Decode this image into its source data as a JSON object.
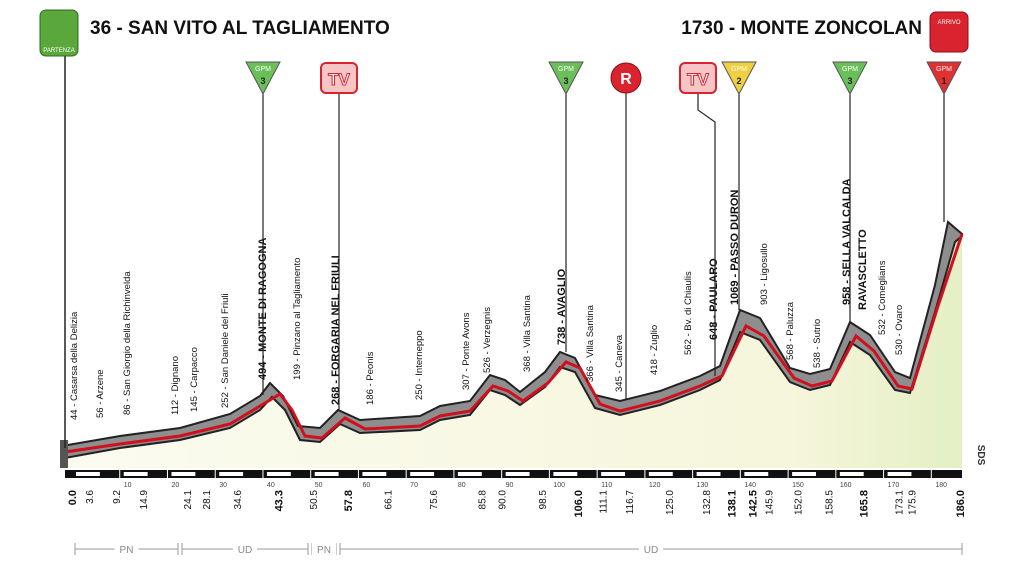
{
  "header": {
    "start": "36 - SAN VITO AL TAGLIAMENTO",
    "finish": "1730 - MONTE ZONCOLAN",
    "start_badge": "PARTENZA",
    "finish_badge": "ARRIVO"
  },
  "markers": [
    {
      "label": "GPM",
      "category": "3"
    },
    {
      "label": "TV"
    },
    {
      "label": "GPM",
      "category": "3"
    },
    {
      "label": "R"
    },
    {
      "label": "TV"
    },
    {
      "label": "GPM",
      "category": "2"
    },
    {
      "label": "GPM",
      "category": "3"
    },
    {
      "label": "GPM",
      "category": "1"
    }
  ],
  "waypoints": [
    {
      "label": "44 - Casarsa della Delizia",
      "km": "3.6"
    },
    {
      "label": "56 - Arzene",
      "km": "9.2"
    },
    {
      "label": "86 - San Giorgio della Richinvelda",
      "km": "14.9"
    },
    {
      "label": "112 - Dignano",
      "km": "24.1"
    },
    {
      "label": "145 - Carpacco",
      "km": "28.1"
    },
    {
      "label": "252 - San Daniele del Friuli",
      "km": "34.6"
    },
    {
      "label": "494 - MONTE DI RAGOGNA",
      "km": "43.3"
    },
    {
      "label": "199 - Pinzano al Tagliamento",
      "km": "50.5"
    },
    {
      "label": "268 - FORGARIA NEL FRIULI",
      "km": "57.8"
    },
    {
      "label": "186 - Peonis",
      "km": "66.1"
    },
    {
      "label": "250 - Interneppo",
      "km": "75.6"
    },
    {
      "label": "307 - Ponte Avons",
      "km": "85.8"
    },
    {
      "label": "526 - Verzegnis",
      "km": "90.0"
    },
    {
      "label": "368 - Villa Santina",
      "km": "98.5"
    },
    {
      "label": "738 - AVAGLIO",
      "km": "106.0"
    },
    {
      "label": "366 - Villa Santina",
      "km": "111.1"
    },
    {
      "label": "345 - Caneva",
      "km": "116.7"
    },
    {
      "label": "418 - Zuglio",
      "km": "125.0"
    },
    {
      "label": "562 - Bv. di Chiaulis",
      "km": "132.8"
    },
    {
      "label": "648 - PAULARO",
      "km": "138.1"
    },
    {
      "label": "1069 - PASSO DURON",
      "km": "142.5"
    },
    {
      "label": "903 - Ligosullo",
      "km": "145.9"
    },
    {
      "label": "568 - Paluzza",
      "km": "152.0"
    },
    {
      "label": "538 - Sutrio",
      "km": "158.5"
    },
    {
      "label": "958 - SELLA VALCALDA",
      "km": "165.8"
    },
    {
      "label": "532 - Comeglians",
      "km": "173.1"
    },
    {
      "label": "530 - Ovaro",
      "km": "175.9"
    }
  ],
  "extra_label": "RAVASCLETTO",
  "start_km": "0.0",
  "finish_km": "186.0",
  "scale": [
    10,
    20,
    30,
    40,
    50,
    60,
    70,
    80,
    90,
    100,
    110,
    120,
    130,
    140,
    150,
    160,
    170,
    180
  ],
  "regions": [
    "PN",
    "UD",
    "PN",
    "UD"
  ],
  "credit": "SDS"
}
